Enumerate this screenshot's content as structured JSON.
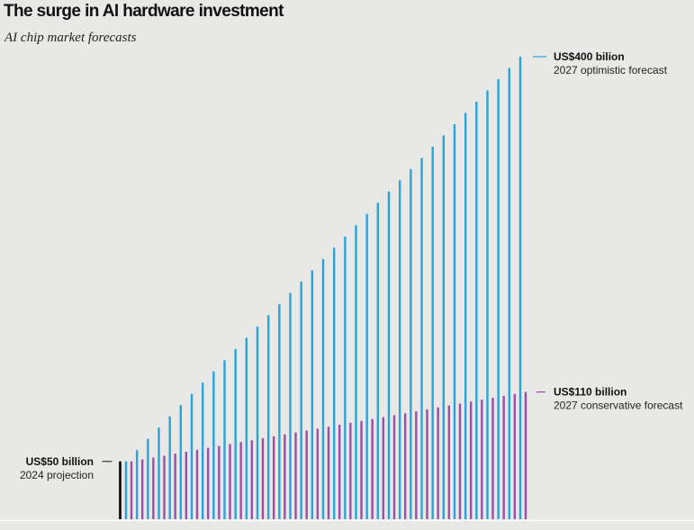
{
  "header": {
    "title": "The surge in AI hardware investment",
    "subtitle": "AI chip market forecasts"
  },
  "colors": {
    "background": "#e8e8e6",
    "optimistic": "#29a3dc",
    "conservative": "#9b4fa6",
    "baseline": "#111111",
    "axis": "#ffffff"
  },
  "chart_data": {
    "type": "bar",
    "title": "The surge in AI hardware investment",
    "subtitle": "AI chip market forecasts",
    "xlabel": "",
    "ylabel": "",
    "unit": "US$ billion",
    "ylim": [
      0,
      400
    ],
    "grid": false,
    "legend": "direct-labels",
    "start": {
      "value": 50,
      "period": "2024"
    },
    "end_period": "2027",
    "steps": 37,
    "series": [
      {
        "name": "2027 optimistic forecast",
        "start": 50,
        "end": 400,
        "color": "#29a3dc"
      },
      {
        "name": "2027 conservative forecast",
        "start": 50,
        "end": 110,
        "color": "#9b4fa6"
      }
    ],
    "annotations": [
      {
        "target": "start",
        "value_label": "US$50 billion",
        "desc": "2024 projection"
      },
      {
        "target": "2027 optimistic forecast",
        "value_label": "US$400 bilion",
        "desc": "2027 optimistic forecast"
      },
      {
        "target": "2027 conservative forecast",
        "value_label": "US$110 billion",
        "desc": "2027 conservative forecast"
      }
    ]
  }
}
